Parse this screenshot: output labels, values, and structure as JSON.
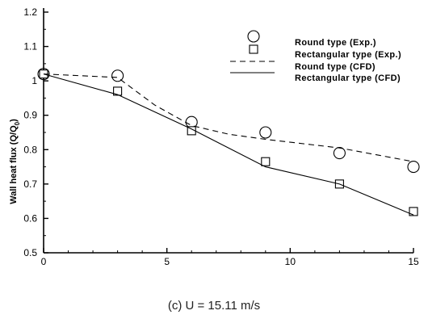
{
  "chart_data": {
    "type": "line",
    "caption": "(c) U = 15.11 m/s",
    "ylabel": "Wall heat flux (Q/Q",
    "ylabel_sub": "0",
    "ylabel_close": ")",
    "xlabel": "",
    "xlim": [
      0,
      15
    ],
    "ylim": [
      0.5,
      1.2
    ],
    "xticks": [
      "0",
      "5",
      "10",
      "15"
    ],
    "yticks": [
      "0.5",
      "0.6",
      "0.7",
      "0.8",
      "0.9",
      "1",
      "1.1",
      "1.2"
    ],
    "grid": false,
    "legend_position": "top-right",
    "series": [
      {
        "name": "Round type (Exp.)",
        "style": "circle-marker",
        "x": [
          0,
          3,
          6,
          9,
          12,
          15
        ],
        "y": [
          1.02,
          1.015,
          0.88,
          0.85,
          0.79,
          0.75
        ]
      },
      {
        "name": "Rectangular type (Exp.)",
        "style": "square-marker",
        "x": [
          0,
          3,
          6,
          9,
          12,
          15
        ],
        "y": [
          1.02,
          0.97,
          0.855,
          0.765,
          0.7,
          0.62
        ]
      },
      {
        "name": "Round type (CFD)",
        "style": "dashed-line",
        "x": [
          0,
          3,
          4.5,
          6,
          7.5,
          9,
          12,
          15
        ],
        "y": [
          1.02,
          1.01,
          0.93,
          0.87,
          0.845,
          0.83,
          0.805,
          0.765
        ]
      },
      {
        "name": "Rectangular type (CFD)",
        "style": "solid-line",
        "x": [
          0,
          3,
          6,
          9,
          12,
          15
        ],
        "y": [
          1.02,
          0.96,
          0.86,
          0.75,
          0.7,
          0.61
        ]
      }
    ]
  }
}
